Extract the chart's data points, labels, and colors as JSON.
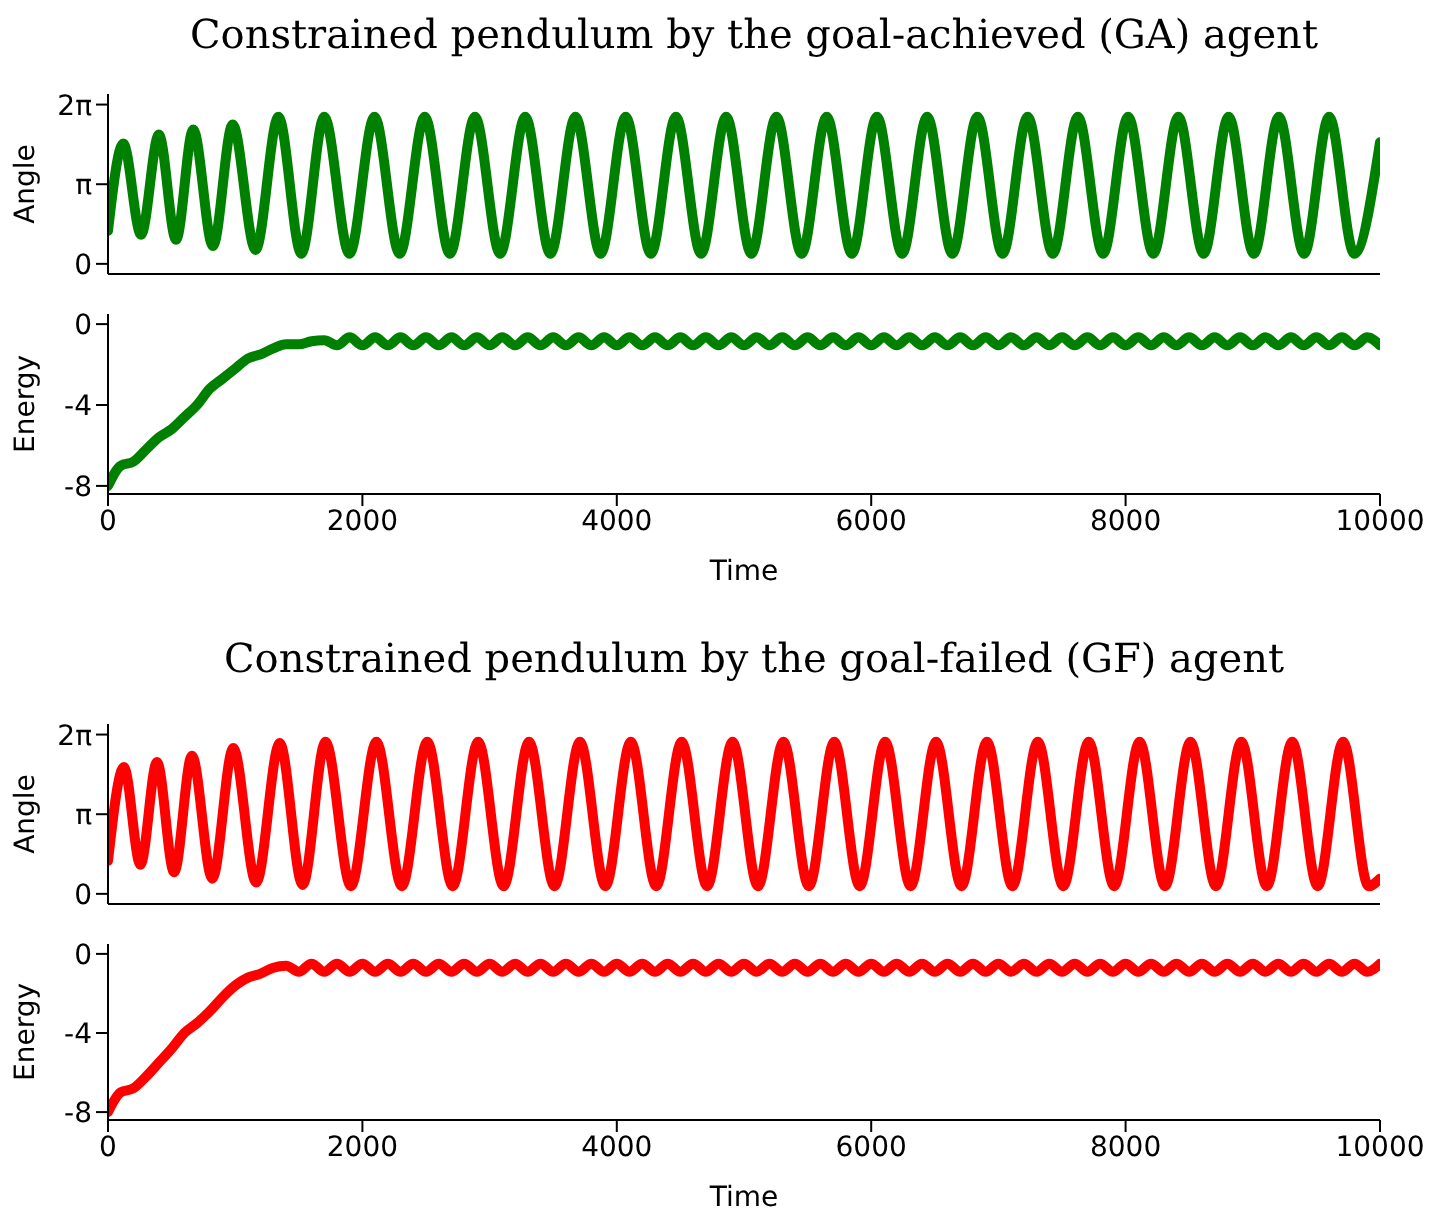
{
  "chart_data": [
    {
      "type": "line",
      "title": "Constrained pendulum by the goal-achieved (GA) agent",
      "ylabel": "Angle",
      "tick_labels": "y",
      "xlim": [
        0,
        10000
      ],
      "ylim": [
        -0.4,
        6.7
      ],
      "yticks": [
        {
          "value": 0,
          "label": "0"
        },
        {
          "value": 3.1416,
          "label": "π"
        },
        {
          "value": 6.2832,
          "label": "2π"
        }
      ],
      "color": "#008000",
      "x": [
        0,
        120,
        260,
        400,
        535,
        670,
        825,
        980,
        1160,
        1340,
        1520,
        1700,
        1898,
        2095,
        2293,
        2490,
        2688,
        2885,
        3083,
        3280,
        3478,
        3675,
        3873,
        4070,
        4268,
        4465,
        4663,
        4860,
        5058,
        5255,
        5453,
        5650,
        5848,
        6045,
        6243,
        6440,
        6638,
        6835,
        7033,
        7230,
        7428,
        7625,
        7823,
        8020,
        8218,
        8415,
        8613,
        8810,
        9008,
        9205,
        9403,
        9600,
        9798,
        10000
      ],
      "values": [
        1.3,
        4.75,
        1.15,
        5.1,
        0.95,
        5.3,
        0.7,
        5.5,
        0.55,
        5.8,
        0.4,
        5.8,
        0.4,
        5.8,
        0.4,
        5.8,
        0.4,
        5.8,
        0.4,
        5.8,
        0.4,
        5.8,
        0.4,
        5.8,
        0.4,
        5.8,
        0.4,
        5.8,
        0.4,
        5.8,
        0.4,
        5.8,
        0.4,
        5.8,
        0.4,
        5.8,
        0.4,
        5.8,
        0.4,
        5.8,
        0.4,
        5.8,
        0.4,
        5.8,
        0.4,
        5.8,
        0.4,
        5.8,
        0.4,
        5.8,
        0.4,
        5.8,
        0.4,
        4.8
      ]
    },
    {
      "type": "line",
      "ylabel": "Energy",
      "xlabel": "Time",
      "xlim": [
        0,
        10000
      ],
      "xticks": [
        0,
        2000,
        4000,
        6000,
        8000,
        10000
      ],
      "ylim": [
        -8.4,
        0.5
      ],
      "yticks": [
        0,
        -4,
        -8
      ],
      "color": "#008000",
      "x": [
        0,
        100,
        200,
        300,
        400,
        500,
        600,
        700,
        800,
        900,
        1000,
        1100,
        1200,
        1300,
        1400,
        1500,
        1600,
        1700,
        1800,
        1900,
        2000,
        2100,
        2200,
        2300,
        2400,
        2500,
        2600,
        2700,
        2800,
        2900,
        3000,
        3100,
        3200,
        3300,
        3400,
        3500,
        3600,
        3700,
        3800,
        3900,
        4000,
        4100,
        4200,
        4300,
        4400,
        4500,
        4600,
        4700,
        4800,
        4900,
        5000,
        5100,
        5200,
        5300,
        5400,
        5500,
        5600,
        5700,
        5800,
        5900,
        6000,
        6100,
        6200,
        6300,
        6400,
        6500,
        6600,
        6700,
        6800,
        6900,
        7000,
        7100,
        7200,
        7300,
        7400,
        7500,
        7600,
        7700,
        7800,
        7900,
        8000,
        8100,
        8200,
        8300,
        8400,
        8500,
        8600,
        8700,
        8800,
        8900,
        9000,
        9100,
        9200,
        9300,
        9400,
        9500,
        9600,
        9700,
        9800,
        9900,
        10000
      ],
      "values": [
        -8,
        -7,
        -6.8,
        -6.2,
        -5.6,
        -5.2,
        -4.6,
        -4,
        -3.2,
        -2.7,
        -2.2,
        -1.7,
        -1.5,
        -1.2,
        -1,
        -1,
        -0.85,
        -0.8,
        -1.05,
        -0.65,
        -1.05,
        -0.65,
        -1.05,
        -0.65,
        -1.05,
        -0.65,
        -1.05,
        -0.65,
        -1.05,
        -0.65,
        -1.05,
        -0.65,
        -1.05,
        -0.65,
        -1.05,
        -0.65,
        -1.05,
        -0.65,
        -1.05,
        -0.65,
        -1.05,
        -0.65,
        -1.05,
        -0.65,
        -1.05,
        -0.65,
        -1.05,
        -0.65,
        -1.05,
        -0.65,
        -1.05,
        -0.65,
        -1.05,
        -0.65,
        -1.05,
        -0.65,
        -1.05,
        -0.65,
        -1.05,
        -0.65,
        -1.05,
        -0.65,
        -1.05,
        -0.65,
        -1.05,
        -0.65,
        -1.05,
        -0.65,
        -1.05,
        -0.65,
        -1.05,
        -0.65,
        -1.05,
        -0.65,
        -1.05,
        -0.65,
        -1.05,
        -0.65,
        -1.05,
        -0.65,
        -1.05,
        -0.65,
        -1.05,
        -0.65,
        -1.05,
        -0.65,
        -1.05,
        -0.65,
        -1.05,
        -0.65,
        -1.05,
        -0.65,
        -1.05,
        -0.65,
        -1.05,
        -0.65,
        -1.05,
        -0.65,
        -1.05,
        -0.65,
        -1.05
      ]
    },
    {
      "type": "line",
      "title": "Constrained pendulum by the goal-failed (GF) agent",
      "ylabel": "Angle",
      "tick_labels": "y",
      "xlim": [
        0,
        10000
      ],
      "ylim": [
        -0.4,
        6.7
      ],
      "yticks": [
        {
          "value": 0,
          "label": "0"
        },
        {
          "value": 3.1416,
          "label": "π"
        },
        {
          "value": 6.2832,
          "label": "2π"
        }
      ],
      "color": "#ff0000",
      "x": [
        0,
        125,
        255,
        385,
        520,
        660,
        820,
        985,
        1165,
        1350,
        1530,
        1710,
        1910,
        2110,
        2310,
        2510,
        2710,
        2910,
        3110,
        3310,
        3510,
        3710,
        3910,
        4110,
        4310,
        4510,
        4710,
        4910,
        5110,
        5310,
        5510,
        5710,
        5910,
        6110,
        6310,
        6510,
        6710,
        6910,
        7110,
        7310,
        7510,
        7710,
        7910,
        8110,
        8310,
        8510,
        8710,
        8910,
        9110,
        9310,
        9510,
        9710,
        9910,
        10000
      ],
      "values": [
        1.3,
        5,
        1.15,
        5.2,
        0.85,
        5.45,
        0.6,
        5.75,
        0.45,
        5.95,
        0.35,
        6,
        0.3,
        6,
        0.3,
        6,
        0.3,
        6,
        0.3,
        6,
        0.3,
        6,
        0.3,
        6,
        0.3,
        6,
        0.3,
        6,
        0.3,
        6,
        0.3,
        6,
        0.3,
        6,
        0.3,
        6,
        0.3,
        6,
        0.3,
        6,
        0.3,
        6,
        0.3,
        6,
        0.3,
        6,
        0.3,
        6,
        0.3,
        6,
        0.3,
        6,
        0.3,
        0.6
      ]
    },
    {
      "type": "line",
      "ylabel": "Energy",
      "xlabel": "Time",
      "xlim": [
        0,
        10000
      ],
      "xticks": [
        0,
        2000,
        4000,
        6000,
        8000,
        10000
      ],
      "ylim": [
        -8.4,
        0.5
      ],
      "yticks": [
        0,
        -4,
        -8
      ],
      "color": "#ff0000",
      "x": [
        0,
        100,
        200,
        300,
        400,
        500,
        600,
        700,
        800,
        900,
        1000,
        1100,
        1200,
        1300,
        1400,
        1500,
        1600,
        1700,
        1800,
        1900,
        2000,
        2100,
        2200,
        2300,
        2400,
        2500,
        2600,
        2700,
        2800,
        2900,
        3000,
        3100,
        3200,
        3300,
        3400,
        3500,
        3600,
        3700,
        3800,
        3900,
        4000,
        4100,
        4200,
        4300,
        4400,
        4500,
        4600,
        4700,
        4800,
        4900,
        5000,
        5100,
        5200,
        5300,
        5400,
        5500,
        5600,
        5700,
        5800,
        5900,
        6000,
        6100,
        6200,
        6300,
        6400,
        6500,
        6600,
        6700,
        6800,
        6900,
        7000,
        7100,
        7200,
        7300,
        7400,
        7500,
        7600,
        7700,
        7800,
        7900,
        8000,
        8100,
        8200,
        8300,
        8400,
        8500,
        8600,
        8700,
        8800,
        8900,
        9000,
        9100,
        9200,
        9300,
        9400,
        9500,
        9600,
        9700,
        9800,
        9900,
        10000
      ],
      "values": [
        -8,
        -7,
        -6.8,
        -6.2,
        -5.5,
        -4.8,
        -4,
        -3.5,
        -2.9,
        -2.2,
        -1.6,
        -1.2,
        -1,
        -0.7,
        -0.6,
        -0.9,
        -0.5,
        -0.9,
        -0.5,
        -0.9,
        -0.5,
        -0.9,
        -0.5,
        -0.9,
        -0.5,
        -0.9,
        -0.5,
        -0.9,
        -0.5,
        -0.9,
        -0.5,
        -0.9,
        -0.5,
        -0.9,
        -0.5,
        -0.9,
        -0.5,
        -0.9,
        -0.5,
        -0.9,
        -0.5,
        -0.9,
        -0.5,
        -0.9,
        -0.5,
        -0.9,
        -0.5,
        -0.9,
        -0.5,
        -0.9,
        -0.5,
        -0.9,
        -0.5,
        -0.9,
        -0.5,
        -0.9,
        -0.5,
        -0.9,
        -0.5,
        -0.9,
        -0.5,
        -0.9,
        -0.5,
        -0.9,
        -0.5,
        -0.9,
        -0.5,
        -0.9,
        -0.5,
        -0.9,
        -0.5,
        -0.9,
        -0.5,
        -0.9,
        -0.5,
        -0.9,
        -0.5,
        -0.9,
        -0.5,
        -0.9,
        -0.5,
        -0.9,
        -0.5,
        -0.9,
        -0.5,
        -0.9,
        -0.5,
        -0.9,
        -0.5,
        -0.9,
        -0.5,
        -0.9,
        -0.5,
        -0.9,
        -0.5,
        -0.9,
        -0.5,
        -0.9,
        -0.5,
        -0.9,
        -0.5
      ]
    }
  ]
}
